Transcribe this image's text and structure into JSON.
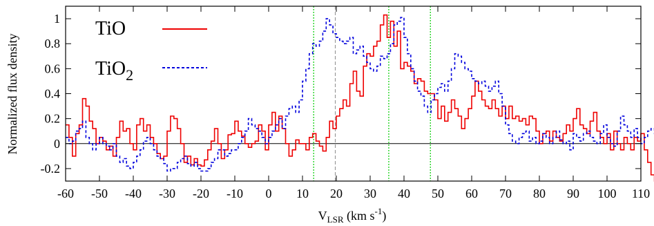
{
  "chart_data": {
    "type": "line",
    "title": "",
    "xlabel": {
      "main": "V",
      "sub": "LSR",
      "rest": " (km s",
      "sup": "-1",
      "end": ")"
    },
    "ylabel": "Normalized flux density",
    "xlim": [
      -60,
      110
    ],
    "ylim": [
      -0.3,
      1.1
    ],
    "xticks": [
      -60,
      -50,
      -40,
      -30,
      -20,
      -10,
      0,
      10,
      20,
      30,
      40,
      50,
      60,
      70,
      80,
      90,
      100,
      110
    ],
    "yticks": [
      -0.2,
      0,
      0.2,
      0.4,
      0.6,
      0.8,
      1
    ],
    "ytick_labels": [
      "-0.2",
      "0",
      "0.2",
      "0.4",
      "0.6",
      "0.8",
      "1"
    ],
    "grid": false,
    "legend_position": "top-left",
    "zero_line": true,
    "vertical_lines": [
      {
        "x": 13.3,
        "color": "#00cc00",
        "style": "dotted"
      },
      {
        "x": 19.7,
        "color": "#999999",
        "style": "dashed"
      },
      {
        "x": 35.5,
        "color": "#00cc00",
        "style": "dotted"
      },
      {
        "x": 47.8,
        "color": "#00cc00",
        "style": "dotted"
      }
    ],
    "x_step": 1,
    "series": [
      {
        "name": "TiO",
        "color": "#ee0000",
        "style": "solid",
        "x_start": -60,
        "values": [
          0.15,
          0.05,
          -0.1,
          0.08,
          0.15,
          0.36,
          0.3,
          0.18,
          0.12,
          0.0,
          0.05,
          0.02,
          -0.05,
          -0.02,
          -0.1,
          0.05,
          0.18,
          0.1,
          0.12,
          0.0,
          -0.05,
          0.15,
          0.2,
          0.1,
          0.15,
          0.05,
          0.0,
          -0.08,
          -0.12,
          -0.1,
          0.1,
          0.22,
          0.2,
          0.12,
          0.0,
          -0.15,
          -0.1,
          -0.17,
          -0.12,
          -0.17,
          -0.18,
          -0.13,
          -0.05,
          0.02,
          0.12,
          0.0,
          -0.12,
          -0.05,
          0.07,
          0.08,
          0.18,
          0.1,
          0.06,
          0.0,
          -0.03,
          0.0,
          0.02,
          0.15,
          0.1,
          -0.05,
          0.15,
          0.25,
          0.1,
          0.22,
          0.12,
          0.0,
          -0.1,
          -0.05,
          0.03,
          0.0,
          0.0,
          -0.05,
          0.05,
          0.08,
          0.02,
          -0.02,
          -0.06,
          0.05,
          0.18,
          0.12,
          0.22,
          0.28,
          0.35,
          0.3,
          0.48,
          0.58,
          0.42,
          0.38,
          0.62,
          0.72,
          0.7,
          0.78,
          0.82,
          0.95,
          1.03,
          0.85,
          0.98,
          0.78,
          0.9,
          0.6,
          0.65,
          0.62,
          0.58,
          0.48,
          0.52,
          0.5,
          0.42,
          0.4,
          0.4,
          0.35,
          0.2,
          0.3,
          0.18,
          0.25,
          0.35,
          0.28,
          0.22,
          0.12,
          0.2,
          0.28,
          0.38,
          0.5,
          0.42,
          0.35,
          0.3,
          0.28,
          0.35,
          0.28,
          0.22,
          0.3,
          0.2,
          0.3,
          0.2,
          0.22,
          0.18,
          0.2,
          0.15,
          0.22,
          0.2,
          0.1,
          0.0,
          0.08,
          0.1,
          0.02,
          0.1,
          0.05,
          0.02,
          0.08,
          0.15,
          0.1,
          0.2,
          0.28,
          0.15,
          0.12,
          0.08,
          0.18,
          0.25,
          0.1,
          0.05,
          0.0,
          0.08,
          -0.05,
          0.1,
          0.0,
          -0.05,
          0.05,
          0.0,
          -0.05,
          0.05,
          0.02,
          0.08,
          -0.05,
          -0.15,
          -0.25,
          -0.35,
          0.0,
          0.05
        ]
      },
      {
        "name": "TiO₂",
        "color": "#0000dd",
        "style": "dashed",
        "x_start": -60,
        "values": [
          0.05,
          0.0,
          0.02,
          0.1,
          0.12,
          0.18,
          0.05,
          0.0,
          -0.05,
          0.0,
          0.05,
          0.0,
          -0.02,
          -0.05,
          0.0,
          -0.1,
          -0.15,
          -0.12,
          -0.18,
          -0.2,
          -0.15,
          -0.1,
          -0.05,
          0.02,
          0.05,
          0.0,
          -0.05,
          -0.1,
          -0.12,
          -0.16,
          -0.22,
          -0.2,
          -0.2,
          -0.15,
          -0.12,
          -0.1,
          -0.16,
          -0.18,
          -0.15,
          -0.2,
          -0.22,
          -0.22,
          -0.2,
          -0.15,
          -0.12,
          -0.05,
          -0.05,
          -0.1,
          -0.08,
          -0.05,
          -0.05,
          0.0,
          0.05,
          0.1,
          0.2,
          0.15,
          0.12,
          0.1,
          0.05,
          0.0,
          0.05,
          0.1,
          0.15,
          0.2,
          0.12,
          0.22,
          0.28,
          0.3,
          0.25,
          0.35,
          0.5,
          0.6,
          0.72,
          0.8,
          0.78,
          0.82,
          0.9,
          1.0,
          0.95,
          0.88,
          0.85,
          0.82,
          0.8,
          0.82,
          0.85,
          0.72,
          0.75,
          0.78,
          0.7,
          0.65,
          0.6,
          0.58,
          0.62,
          0.7,
          0.68,
          0.72,
          0.8,
          0.95,
          0.98,
          1.01,
          0.85,
          0.72,
          0.6,
          0.5,
          0.42,
          0.38,
          0.3,
          0.25,
          0.35,
          0.4,
          0.45,
          0.48,
          0.42,
          0.5,
          0.6,
          0.72,
          0.7,
          0.65,
          0.6,
          0.58,
          0.52,
          0.5,
          0.48,
          0.5,
          0.46,
          0.42,
          0.46,
          0.5,
          0.4,
          0.3,
          0.15,
          0.08,
          0.02,
          0.0,
          0.05,
          0.08,
          0.1,
          0.02,
          0.05,
          0.0,
          0.02,
          0.08,
          0.05,
          0.0,
          0.05,
          0.1,
          0.03,
          0.0,
          0.02,
          -0.05,
          0.08,
          0.05,
          0.02,
          0.08,
          0.1,
          0.05,
          0.02,
          0.0,
          0.08,
          0.15,
          0.05,
          0.0,
          -0.02,
          0.1,
          0.22,
          0.15,
          0.1,
          0.05,
          0.12,
          0.05,
          0.0,
          0.05,
          0.1,
          0.12,
          0.08,
          0.02
        ]
      }
    ]
  }
}
